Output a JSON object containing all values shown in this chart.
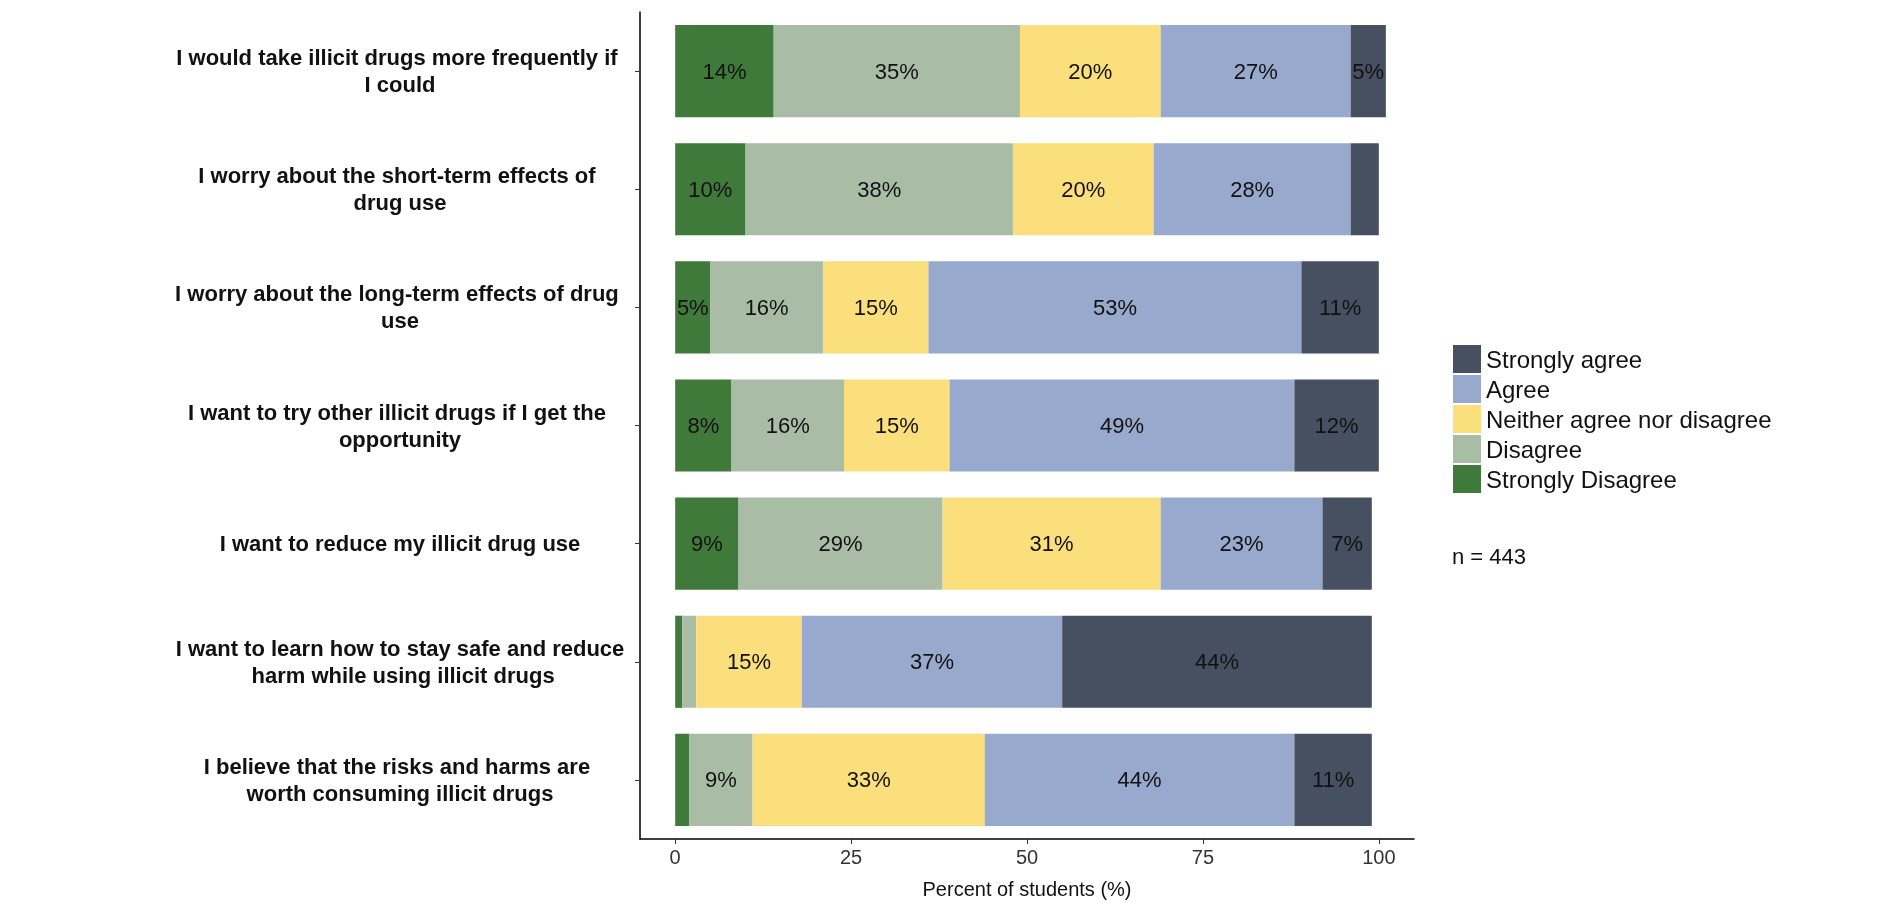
{
  "chart_data": {
    "type": "bar",
    "orientation": "horizontal",
    "stacked": true,
    "xlabel": "Percent of students (%)",
    "categories": [
      "I would take illicit drugs more frequently if I could",
      "I worry about the short-term effects of drug use",
      "I worry about the long-term effects of drug use",
      "I want to try other illicit drugs if I get the opportunity",
      "I want to reduce my illicit drug use",
      "I want to learn how to stay safe and reduce harm while using illicit drugs",
      "I believe that the risks and harms are worth consuming illicit drugs"
    ],
    "series": [
      {
        "name": "Strongly Disagree",
        "color": "#3f7a3a",
        "values": [
          14,
          10,
          5,
          8,
          9,
          1,
          2
        ],
        "value_labels": [
          "14%",
          "10%",
          "5%",
          "8%",
          "9%",
          null,
          null
        ]
      },
      {
        "name": "Disagree",
        "color": "#a8bca6",
        "values": [
          35,
          38,
          16,
          16,
          29,
          2,
          9
        ],
        "value_labels": [
          "35%",
          "38%",
          "16%",
          "16%",
          "29%",
          null,
          "9%"
        ]
      },
      {
        "name": "Neither agree nor disagree",
        "color": "#fbdf7c",
        "values": [
          20,
          20,
          15,
          15,
          31,
          15,
          33
        ],
        "value_labels": [
          "20%",
          "20%",
          "15%",
          "15%",
          "31%",
          "15%",
          "33%"
        ]
      },
      {
        "name": "Agree",
        "color": "#97a9cc",
        "values": [
          27,
          28,
          53,
          49,
          23,
          37,
          44
        ],
        "value_labels": [
          "27%",
          "28%",
          "53%",
          "49%",
          "23%",
          "37%",
          "44%"
        ]
      },
      {
        "name": "Strongly agree",
        "color": "#465060",
        "values": [
          5,
          4,
          11,
          12,
          7,
          44,
          11
        ],
        "value_labels": [
          "5%",
          null,
          "11%",
          "12%",
          "7%",
          "44%",
          "11%"
        ]
      }
    ],
    "xlim": [
      -5,
      105
    ],
    "xticks": [
      0,
      25,
      50,
      75,
      100
    ],
    "legend": "right",
    "annotations": [
      "n = 443"
    ]
  }
}
